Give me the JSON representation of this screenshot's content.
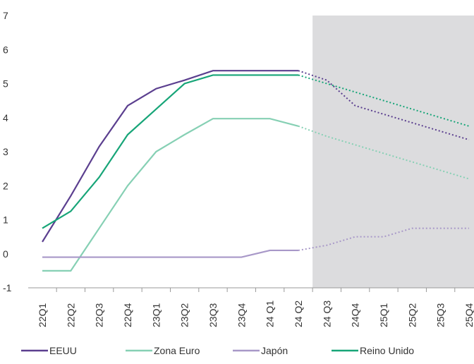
{
  "chart_data": {
    "type": "line",
    "categories": [
      "22Q1",
      "22Q2",
      "22Q3",
      "22Q4",
      "23Q1",
      "23Q2",
      "23Q3",
      "23Q4",
      "24 Q1",
      "24 Q2",
      "24 Q3",
      "24Q4",
      "25Q1",
      "25Q2",
      "25Q3",
      "25Q4"
    ],
    "series": [
      {
        "name": "EEUU",
        "color": "#5b3f8f",
        "values": [
          0.35,
          1.7,
          3.15,
          4.35,
          4.85,
          5.1,
          5.38,
          5.38,
          5.38,
          5.38,
          5.1,
          4.35,
          4.1,
          3.85,
          3.6,
          3.35
        ]
      },
      {
        "name": "Zona Euro",
        "color": "#86d0b4",
        "values": [
          -0.5,
          -0.5,
          0.75,
          2.0,
          3.0,
          3.5,
          3.97,
          3.97,
          3.97,
          3.75,
          3.45,
          3.2,
          2.95,
          2.7,
          2.45,
          2.2
        ]
      },
      {
        "name": "Japón",
        "color": "#a898c8",
        "values": [
          -0.1,
          -0.1,
          -0.1,
          -0.1,
          -0.1,
          -0.1,
          -0.1,
          -0.1,
          0.1,
          0.1,
          0.25,
          0.5,
          0.5,
          0.75,
          0.75,
          0.75
        ]
      },
      {
        "name": "Reino Unido",
        "color": "#17a578",
        "values": [
          0.75,
          1.25,
          2.25,
          3.5,
          4.25,
          5.0,
          5.25,
          5.25,
          5.25,
          5.25,
          5.0,
          4.75,
          4.5,
          4.25,
          4.0,
          3.75
        ]
      }
    ],
    "forecast_start": "24 Q3",
    "ylim": [
      -1,
      7
    ],
    "yticks": [
      -1,
      0,
      1,
      2,
      3,
      4,
      5,
      6,
      7
    ],
    "legend": "bottom"
  }
}
